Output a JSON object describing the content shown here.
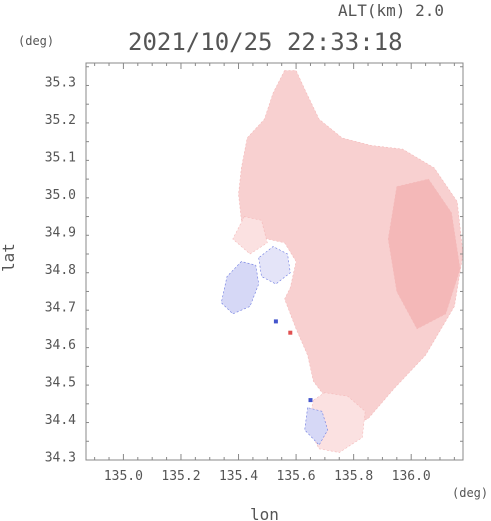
{
  "header": {
    "altitude": "ALT(km) 2.0",
    "timestamp": "2021/10/25 22:33:18"
  },
  "chart_data": {
    "type": "heatmap",
    "title": "2021/10/25 22:33:18",
    "xlabel": "lon",
    "ylabel": "lat",
    "x_unit": "(deg)",
    "y_unit": "(deg)",
    "xlim": [
      134.87,
      136.18
    ],
    "ylim": [
      34.29,
      35.35
    ],
    "x_ticks": [
      135.0,
      135.2,
      135.4,
      135.6,
      135.8,
      136.0
    ],
    "x_tick_labels": [
      "135.0",
      "135.2",
      "135.4",
      "135.6",
      "135.8",
      "136.0"
    ],
    "y_ticks": [
      34.3,
      34.4,
      34.5,
      34.6,
      34.7,
      34.8,
      34.9,
      35.0,
      35.1,
      35.2,
      35.3
    ],
    "y_tick_labels": [
      "34.3",
      "34.4",
      "34.5",
      "34.6",
      "34.7",
      "34.8",
      "34.9",
      "35.0",
      "35.1",
      "35.2",
      "35.3"
    ],
    "grid": false,
    "minor_ticks": true,
    "colors": {
      "positive_light": "#fbe1e1",
      "positive": "#f8d0d0",
      "positive_strong": "#f4b8b8",
      "negative_light": "#e4e4f8",
      "negative": "#d6d8f6",
      "negative_strong": "#6a78e0",
      "point_red": "#e05050",
      "point_blue": "#4455cc"
    },
    "regions": [
      {
        "name": "main-positive-echo",
        "sign": "positive",
        "shade": "positive",
        "points": [
          [
            135.56,
            35.33
          ],
          [
            135.52,
            35.27
          ],
          [
            135.49,
            35.2
          ],
          [
            135.43,
            35.15
          ],
          [
            135.41,
            35.07
          ],
          [
            135.4,
            35.0
          ],
          [
            135.41,
            34.93
          ],
          [
            135.44,
            34.9
          ],
          [
            135.5,
            34.88
          ],
          [
            135.56,
            34.87
          ],
          [
            135.6,
            34.82
          ],
          [
            135.58,
            34.75
          ],
          [
            135.56,
            34.72
          ],
          [
            135.6,
            34.64
          ],
          [
            135.64,
            34.57
          ],
          [
            135.66,
            34.5
          ],
          [
            135.72,
            34.44
          ],
          [
            135.78,
            34.38
          ],
          [
            135.85,
            34.4
          ],
          [
            135.94,
            34.48
          ],
          [
            136.05,
            34.57
          ],
          [
            136.15,
            34.7
          ],
          [
            136.18,
            34.84
          ],
          [
            136.16,
            34.98
          ],
          [
            136.08,
            35.07
          ],
          [
            135.97,
            35.12
          ],
          [
            135.86,
            35.13
          ],
          [
            135.76,
            35.15
          ],
          [
            135.68,
            35.2
          ],
          [
            135.63,
            35.28
          ],
          [
            135.6,
            35.33
          ]
        ]
      },
      {
        "name": "stronger-positive-east",
        "sign": "positive",
        "shade": "positive_strong",
        "points": [
          [
            135.95,
            35.02
          ],
          [
            135.92,
            34.88
          ],
          [
            135.95,
            34.74
          ],
          [
            136.02,
            34.64
          ],
          [
            136.12,
            34.68
          ],
          [
            136.17,
            34.8
          ],
          [
            136.14,
            34.95
          ],
          [
            136.06,
            35.04
          ]
        ]
      },
      {
        "name": "positive-nw-patch",
        "sign": "positive",
        "shade": "positive_light",
        "points": [
          [
            135.42,
            34.94
          ],
          [
            135.38,
            34.88
          ],
          [
            135.44,
            34.84
          ],
          [
            135.5,
            34.87
          ],
          [
            135.48,
            34.93
          ]
        ]
      },
      {
        "name": "southern-echo",
        "sign": "mixed",
        "shade": "positive_light",
        "points": [
          [
            135.66,
            34.45
          ],
          [
            135.64,
            34.38
          ],
          [
            135.68,
            34.32
          ],
          [
            135.75,
            34.31
          ],
          [
            135.83,
            34.35
          ],
          [
            135.84,
            34.42
          ],
          [
            135.78,
            34.46
          ],
          [
            135.7,
            34.47
          ]
        ]
      },
      {
        "name": "western-negative-echo",
        "sign": "negative",
        "shade": "negative",
        "points": [
          [
            135.41,
            34.82
          ],
          [
            135.36,
            34.78
          ],
          [
            135.34,
            34.71
          ],
          [
            135.38,
            34.68
          ],
          [
            135.44,
            34.7
          ],
          [
            135.47,
            34.76
          ],
          [
            135.46,
            34.81
          ]
        ]
      },
      {
        "name": "center-negative-ring",
        "sign": "negative",
        "shade": "negative_light",
        "points": [
          [
            135.47,
            34.83
          ],
          [
            135.48,
            34.78
          ],
          [
            135.53,
            34.76
          ],
          [
            135.58,
            34.79
          ],
          [
            135.57,
            34.84
          ],
          [
            135.52,
            34.86
          ]
        ]
      },
      {
        "name": "southern-negative-patch",
        "sign": "negative",
        "shade": "negative",
        "points": [
          [
            135.64,
            34.43
          ],
          [
            135.63,
            34.37
          ],
          [
            135.68,
            34.33
          ],
          [
            135.71,
            34.37
          ],
          [
            135.69,
            34.42
          ]
        ]
      }
    ],
    "points": [
      {
        "lon": 135.58,
        "lat": 34.63,
        "sign": "positive"
      },
      {
        "lon": 135.65,
        "lat": 34.45,
        "sign": "negative"
      },
      {
        "lon": 135.53,
        "lat": 34.66,
        "sign": "negative"
      }
    ]
  }
}
